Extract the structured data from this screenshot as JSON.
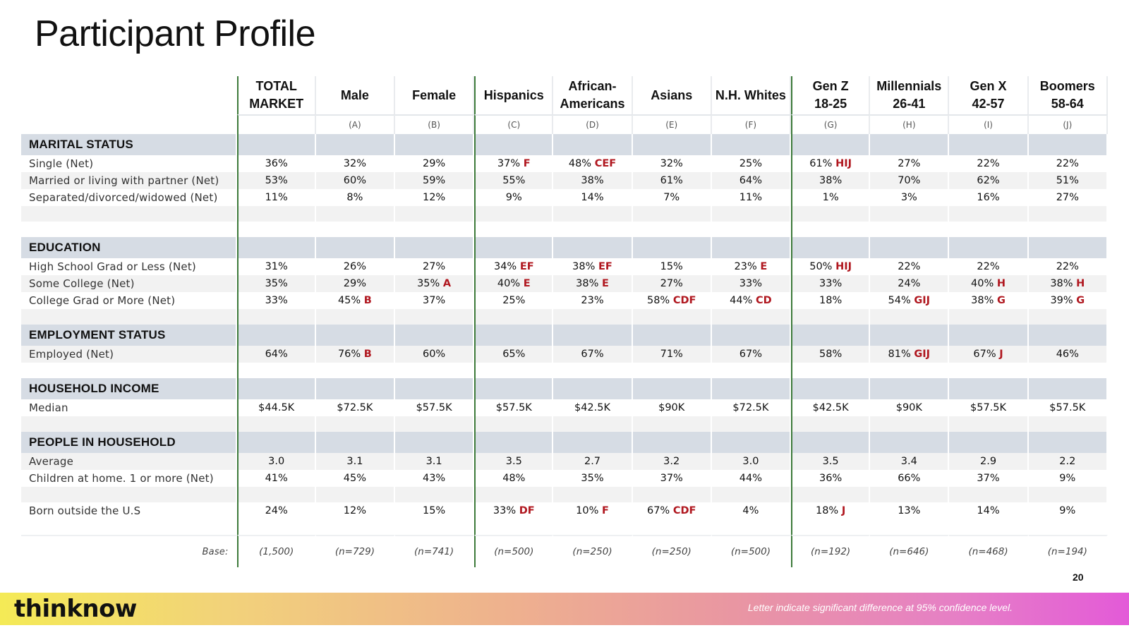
{
  "title": "Participant Profile",
  "columns": [
    {
      "name": "TOTAL MARKET",
      "letter": ""
    },
    {
      "name": "Male",
      "letter": "(A)"
    },
    {
      "name": "Female",
      "letter": "(B)"
    },
    {
      "name": "Hispanics",
      "letter": "(C)"
    },
    {
      "name": "African-Americans",
      "letter": "(D)"
    },
    {
      "name": "Asians",
      "letter": "(E)"
    },
    {
      "name": "N.H. Whites",
      "letter": "(F)"
    },
    {
      "name": "Gen Z 18-25",
      "letter": "(G)"
    },
    {
      "name": "Millennials 26-41",
      "letter": "(H)"
    },
    {
      "name": "Gen X 42-57",
      "letter": "(I)"
    },
    {
      "name": "Boomers 58-64",
      "letter": "(J)"
    }
  ],
  "rows": [
    {
      "type": "section",
      "label": "MARITAL STATUS"
    },
    {
      "type": "data",
      "shade": "white",
      "label": "Single (Net)",
      "values": [
        "36%",
        "32%",
        "29%",
        "37%",
        "48%",
        "32%",
        "25%",
        "61%",
        "27%",
        "22%",
        "22%"
      ],
      "sig": [
        "",
        "",
        "",
        "F",
        "CEF",
        "",
        "",
        "HIJ",
        "",
        "",
        ""
      ]
    },
    {
      "type": "data",
      "shade": "shade",
      "label": "Married or living with partner (Net)",
      "values": [
        "53%",
        "60%",
        "59%",
        "55%",
        "38%",
        "61%",
        "64%",
        "38%",
        "70%",
        "62%",
        "51%"
      ],
      "sig": [
        "",
        "",
        "",
        "",
        "",
        "",
        "",
        "",
        "",
        "",
        ""
      ]
    },
    {
      "type": "data",
      "shade": "white",
      "label": "Separated/divorced/widowed (Net)",
      "values": [
        "11%",
        "8%",
        "12%",
        "9%",
        "14%",
        "7%",
        "11%",
        "1%",
        "3%",
        "16%",
        "27%"
      ],
      "sig": [
        "",
        "",
        "",
        "",
        "",
        "",
        "",
        "",
        "",
        "",
        ""
      ]
    },
    {
      "type": "spacer",
      "shade": "shade"
    },
    {
      "type": "spacer",
      "shade": "white"
    },
    {
      "type": "section",
      "label": "EDUCATION"
    },
    {
      "type": "data",
      "shade": "white",
      "label": "High School Grad or Less (Net)",
      "values": [
        "31%",
        "26%",
        "27%",
        "34%",
        "38%",
        "15%",
        "23%",
        "50%",
        "22%",
        "22%",
        "22%"
      ],
      "sig": [
        "",
        "",
        "",
        "EF",
        "EF",
        "",
        "E",
        "HIJ",
        "",
        "",
        ""
      ]
    },
    {
      "type": "data",
      "shade": "shade",
      "label": "Some College (Net)",
      "values": [
        "35%",
        "29%",
        "35%",
        "40%",
        "38%",
        "27%",
        "33%",
        "33%",
        "24%",
        "40%",
        "38%"
      ],
      "sig": [
        "",
        "",
        "A",
        "E",
        "E",
        "",
        "",
        "",
        "",
        "H",
        "H"
      ]
    },
    {
      "type": "data",
      "shade": "white",
      "label": "College Grad or More (Net)",
      "values": [
        "33%",
        "45%",
        "37%",
        "25%",
        "23%",
        "58%",
        "44%",
        "18%",
        "54%",
        "38%",
        "39%"
      ],
      "sig": [
        "",
        "B",
        "",
        "",
        "",
        "CDF",
        "CD",
        "",
        "GIJ",
        "G",
        "G"
      ]
    },
    {
      "type": "spacer",
      "shade": "shade"
    },
    {
      "type": "section",
      "label": "EMPLOYMENT STATUS"
    },
    {
      "type": "data",
      "shade": "shade",
      "label": "Employed (Net)",
      "values": [
        "64%",
        "76%",
        "60%",
        "65%",
        "67%",
        "71%",
        "67%",
        "58%",
        "81%",
        "67%",
        "46%"
      ],
      "sig": [
        "",
        "B",
        "",
        "",
        "",
        "",
        "",
        "",
        "GIJ",
        "J",
        ""
      ]
    },
    {
      "type": "spacer",
      "shade": "white"
    },
    {
      "type": "section",
      "label": "HOUSEHOLD INCOME"
    },
    {
      "type": "data",
      "shade": "white",
      "label": "Median",
      "values": [
        "$44.5K",
        "$72.5K",
        "$57.5K",
        "$57.5K",
        "$42.5K",
        "$90K",
        "$72.5K",
        "$42.5K",
        "$90K",
        "$57.5K",
        "$57.5K"
      ],
      "sig": [
        "",
        "",
        "",
        "",
        "",
        "",
        "",
        "",
        "",
        "",
        ""
      ]
    },
    {
      "type": "spacer",
      "shade": "shade"
    },
    {
      "type": "section",
      "label": "PEOPLE IN HOUSEHOLD"
    },
    {
      "type": "data",
      "shade": "shade",
      "label": "Average",
      "values": [
        "3.0",
        "3.1",
        "3.1",
        "3.5",
        "2.7",
        "3.2",
        "3.0",
        "3.5",
        "3.4",
        "2.9",
        "2.2"
      ],
      "sig": [
        "",
        "",
        "",
        "",
        "",
        "",
        "",
        "",
        "",
        "",
        ""
      ]
    },
    {
      "type": "data",
      "shade": "white",
      "label": "Children at home. 1 or more (Net)",
      "values": [
        "41%",
        "45%",
        "43%",
        "48%",
        "35%",
        "37%",
        "44%",
        "36%",
        "66%",
        "37%",
        "9%"
      ],
      "sig": [
        "",
        "",
        "",
        "",
        "",
        "",
        "",
        "",
        "",
        "",
        ""
      ]
    },
    {
      "type": "spacer",
      "shade": "shade"
    },
    {
      "type": "data",
      "shade": "white",
      "label": "Born outside the U.S",
      "values": [
        "24%",
        "12%",
        "15%",
        "33%",
        "10%",
        "67%",
        "4%",
        "18%",
        "13%",
        "14%",
        "9%"
      ],
      "sig": [
        "",
        "",
        "",
        "DF",
        "F",
        "CDF",
        "",
        "J",
        "",
        "",
        ""
      ]
    },
    {
      "type": "spacer",
      "shade": "white"
    },
    {
      "type": "base",
      "label": "Base:",
      "values": [
        "(1,500)",
        "(n=729)",
        "(n=741)",
        "(n=500)",
        "(n=250)",
        "(n=250)",
        "(n=500)",
        "(n=192)",
        "(n=646)",
        "(n=468)",
        "(n=194)"
      ]
    }
  ],
  "page_number": "20",
  "footer": {
    "logo": "thinknow",
    "note": "Letter indicate significant difference at 95% confidence level."
  }
}
